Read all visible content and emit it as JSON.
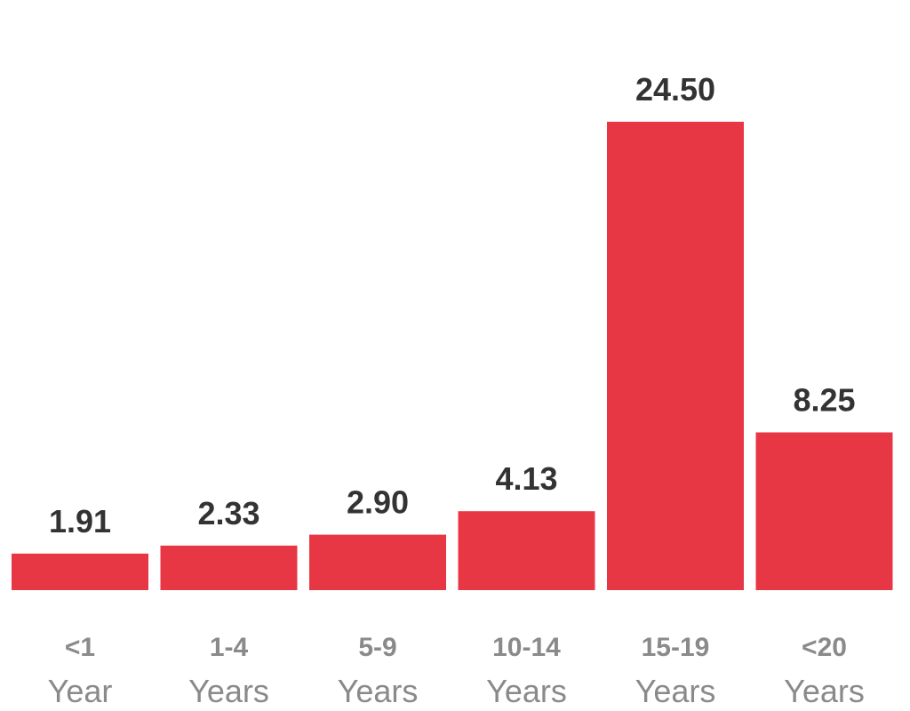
{
  "chart_data": {
    "type": "bar",
    "categories": [
      {
        "line1": "<1",
        "line2": "Year"
      },
      {
        "line1": "1-4",
        "line2": "Years"
      },
      {
        "line1": "5-9",
        "line2": "Years"
      },
      {
        "line1": "10-14",
        "line2": "Years"
      },
      {
        "line1": "15-19",
        "line2": "Years"
      },
      {
        "line1": "<20",
        "line2": "Years"
      }
    ],
    "values": [
      1.91,
      2.33,
      2.9,
      4.13,
      24.5,
      8.25
    ],
    "value_labels": [
      "1.91",
      "2.33",
      "2.90",
      "4.13",
      "24.50",
      "8.25"
    ],
    "title": "",
    "xlabel": "",
    "ylabel": "",
    "ylim": [
      0,
      24.5
    ],
    "grid": false,
    "legend": "none",
    "colors": {
      "bar": "#e83744",
      "value_text": "#333333",
      "category_text": "#8a8a8a"
    }
  }
}
